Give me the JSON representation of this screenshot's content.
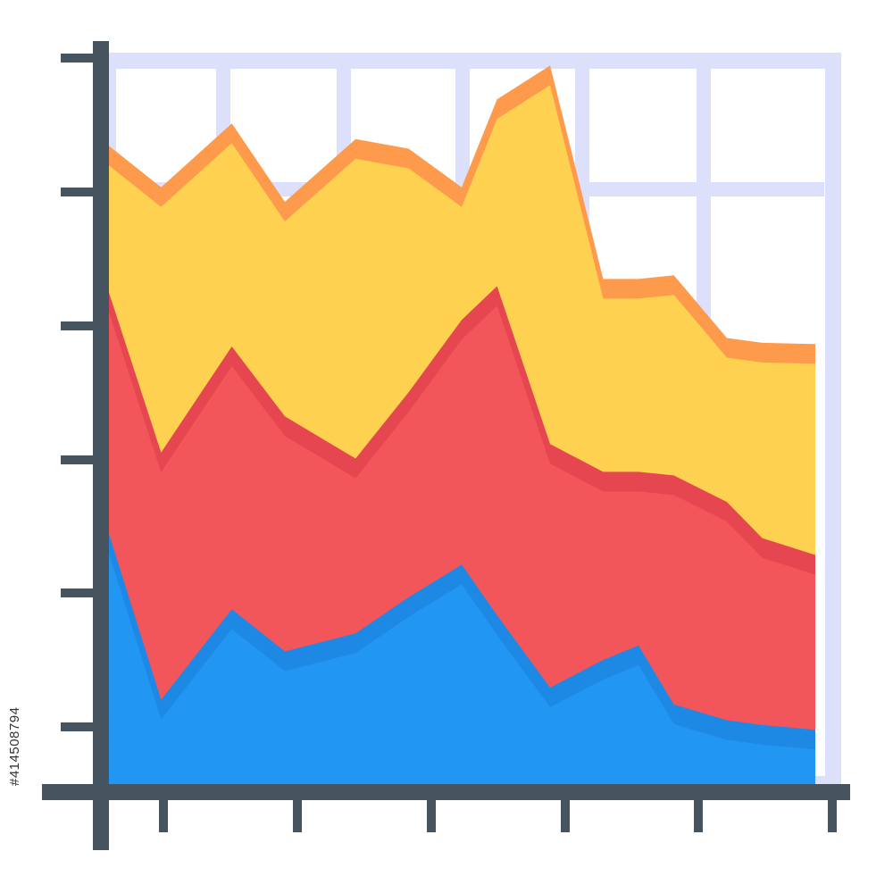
{
  "stock_id": "#414508794",
  "colors": {
    "axis": "#45545f",
    "grid": "#dde0fa",
    "background": "#ffffff"
  },
  "chart_data": {
    "type": "area",
    "stacked": true,
    "title": "",
    "xlabel": "",
    "ylabel": "",
    "x": [
      0,
      0.75,
      1.75,
      2.5,
      3.5,
      4.25,
      5,
      5.5,
      6.25,
      7,
      7.5,
      8,
      8.75,
      9.25,
      10
    ],
    "xlim": [
      0,
      10
    ],
    "ylim": [
      0,
      6
    ],
    "grid": true,
    "legend": "none",
    "series": [
      {
        "color": "#2196f3",
        "edge_color": "#1e88e5",
        "values": [
          2.1,
          0.7,
          1.45,
          1.1,
          1.25,
          1.55,
          1.82,
          1.4,
          0.8,
          1.03,
          1.15,
          0.66,
          0.53,
          0.49,
          0.45
        ]
      },
      {
        "color": "#f2565a",
        "edge_color": "#e54650",
        "values": [
          2.0,
          2.05,
          2.18,
          1.95,
          1.45,
          1.7,
          2.03,
          2.73,
          2.02,
          1.56,
          1.44,
          1.9,
          1.81,
          1.55,
          1.45
        ]
      },
      {
        "color": "#fed250",
        "edge_color": "#fd9a4c",
        "values": [
          1.2,
          2.2,
          1.85,
          1.78,
          2.65,
          2.02,
          1.1,
          1.55,
          3.14,
          1.6,
          1.6,
          1.66,
          1.36,
          1.62,
          1.75
        ]
      }
    ]
  }
}
